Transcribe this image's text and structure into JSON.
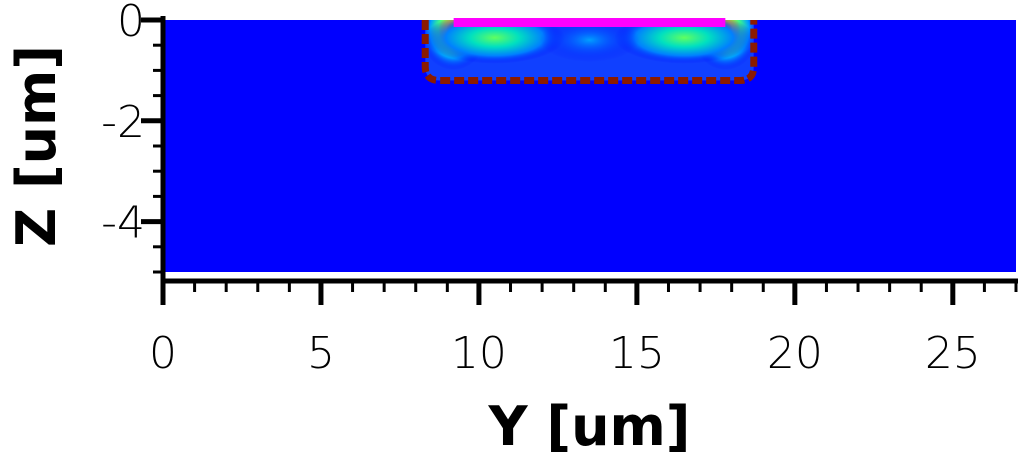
{
  "chart_data": {
    "type": "heatmap",
    "xlabel": "Y [um]",
    "ylabel": "Z [um]",
    "xlim": [
      0,
      27
    ],
    "ylim": [
      -5,
      0
    ],
    "x_ticks": [
      {
        "value": 0,
        "label": "0"
      },
      {
        "value": 5,
        "label": "5"
      },
      {
        "value": 10,
        "label": "10"
      },
      {
        "value": 15,
        "label": "15"
      },
      {
        "value": 20,
        "label": "20"
      },
      {
        "value": 25,
        "label": "25"
      }
    ],
    "y_ticks": [
      {
        "value": 0,
        "label": "0"
      },
      {
        "value": -2,
        "label": "-2"
      },
      {
        "value": -4,
        "label": "-4"
      }
    ],
    "background_color": "#0000ff",
    "electrode": {
      "y_start": 9.2,
      "y_end": 17.8,
      "z": 0,
      "color": "#ff00ff"
    },
    "junction_boundary": {
      "y_start": 8.3,
      "y_end": 18.7,
      "z_bottom": -1.2,
      "color": "#8b1a00"
    },
    "field_hotspots": [
      {
        "y": 9.2,
        "z": -0.2,
        "level": "high"
      },
      {
        "y": 17.8,
        "z": -0.2,
        "level": "high"
      },
      {
        "y": 10.5,
        "z": -0.35,
        "level": "medium"
      },
      {
        "y": 16.5,
        "z": -0.35,
        "level": "medium"
      }
    ],
    "grid": false,
    "legend": "none"
  }
}
